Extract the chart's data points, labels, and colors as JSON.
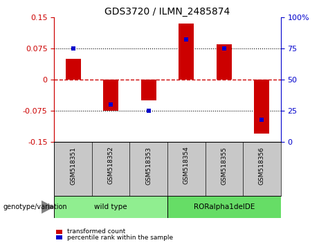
{
  "title": "GDS3720 / ILMN_2485874",
  "samples": [
    "GSM518351",
    "GSM518352",
    "GSM518353",
    "GSM518354",
    "GSM518355",
    "GSM518356"
  ],
  "transformed_counts": [
    0.05,
    -0.075,
    -0.05,
    0.135,
    0.085,
    -0.13
  ],
  "percentile_ranks": [
    75,
    30,
    25,
    82,
    75,
    18
  ],
  "ylim_left": [
    -0.15,
    0.15
  ],
  "ylim_right": [
    0,
    100
  ],
  "yticks_left": [
    -0.15,
    -0.075,
    0,
    0.075,
    0.15
  ],
  "yticks_right": [
    0,
    25,
    50,
    75,
    100
  ],
  "groups": [
    {
      "label": "wild type",
      "indices": [
        0,
        1,
        2
      ],
      "color": "#90EE90"
    },
    {
      "label": "RORalpha1delDE",
      "indices": [
        3,
        4,
        5
      ],
      "color": "#66DD66"
    }
  ],
  "bar_color": "#CC0000",
  "dot_color": "#0000CC",
  "zero_line_color": "#CC0000",
  "dotted_line_color": "#000000",
  "left_axis_color": "#CC0000",
  "right_axis_color": "#0000CC",
  "background_plot": "#FFFFFF",
  "background_label": "#C8C8C8",
  "legend_red_label": "transformed count",
  "legend_blue_label": "percentile rank within the sample",
  "genotype_label": "genotype/variation",
  "bar_width": 0.4,
  "dot_size": 5
}
